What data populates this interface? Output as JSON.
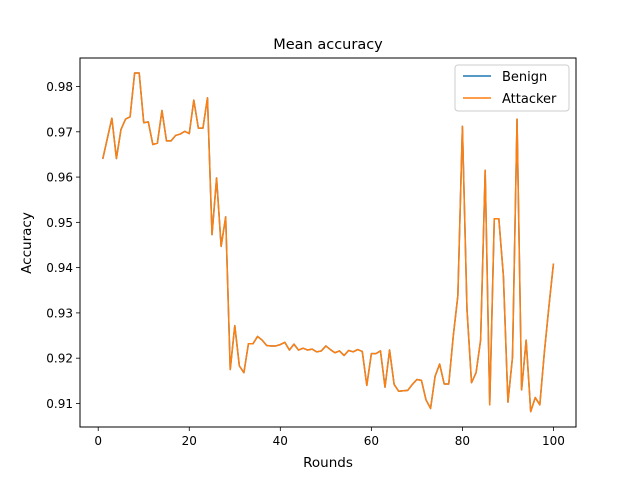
{
  "chart_data": {
    "type": "line",
    "title": "Mean accuracy",
    "xlabel": "Rounds",
    "ylabel": "Accuracy",
    "xlim": [
      -4,
      104.95
    ],
    "ylim": [
      0.9048,
      0.9863
    ],
    "xticks": [
      0,
      20,
      40,
      60,
      80,
      100
    ],
    "yticks": [
      0.91,
      0.92,
      0.93,
      0.94,
      0.95,
      0.96,
      0.97,
      0.98
    ],
    "xtick_labels": [
      "0",
      "20",
      "40",
      "60",
      "80",
      "100"
    ],
    "ytick_labels": [
      "0.91",
      "0.92",
      "0.93",
      "0.94",
      "0.95",
      "0.96",
      "0.97",
      "0.98"
    ],
    "grid": false,
    "legend_position": "top-right",
    "x": [
      1,
      2,
      3,
      4,
      5,
      6,
      7,
      8,
      9,
      10,
      11,
      12,
      13,
      14,
      15,
      16,
      17,
      18,
      19,
      20,
      21,
      22,
      23,
      24,
      25,
      26,
      27,
      28,
      29,
      30,
      31,
      32,
      33,
      34,
      35,
      36,
      37,
      38,
      39,
      40,
      41,
      42,
      43,
      44,
      45,
      46,
      47,
      48,
      49,
      50,
      51,
      52,
      53,
      54,
      55,
      56,
      57,
      58,
      59,
      60,
      61,
      62,
      63,
      64,
      65,
      66,
      67,
      68,
      69,
      70,
      71,
      72,
      73,
      74,
      75,
      76,
      77,
      78,
      79,
      80,
      81,
      82,
      83,
      84,
      85,
      86,
      87,
      88,
      89,
      90,
      91,
      92,
      93,
      94,
      95,
      96,
      97,
      98,
      99,
      100
    ],
    "series": [
      {
        "name": "Benign",
        "color": "#1f77b4",
        "values": [
          0.964,
          0.9685,
          0.973,
          0.9641,
          0.9705,
          0.9728,
          0.9733,
          0.983,
          0.983,
          0.972,
          0.9722,
          0.9672,
          0.9675,
          0.9747,
          0.968,
          0.968,
          0.9692,
          0.9695,
          0.9701,
          0.9696,
          0.977,
          0.9708,
          0.9708,
          0.9775,
          0.9473,
          0.9598,
          0.9447,
          0.9512,
          0.9175,
          0.9272,
          0.9183,
          0.9168,
          0.9232,
          0.9232,
          0.9248,
          0.924,
          0.9228,
          0.9227,
          0.9227,
          0.923,
          0.9235,
          0.9218,
          0.9231,
          0.9218,
          0.9222,
          0.9218,
          0.922,
          0.9214,
          0.9216,
          0.9227,
          0.9219,
          0.9212,
          0.9216,
          0.9206,
          0.9217,
          0.9214,
          0.9219,
          0.9215,
          0.914,
          0.921,
          0.921,
          0.9216,
          0.9136,
          0.9218,
          0.9142,
          0.9127,
          0.9128,
          0.9129,
          0.9142,
          0.9153,
          0.9151,
          0.9108,
          0.9089,
          0.916,
          0.9187,
          0.9143,
          0.9143,
          0.925,
          0.9338,
          0.9712,
          0.9308,
          0.9146,
          0.9168,
          0.924,
          0.9615,
          0.9097,
          0.9508,
          0.9508,
          0.9382,
          0.9103,
          0.9202,
          0.9728,
          0.913,
          0.924,
          0.9082,
          0.9113,
          0.9097,
          0.9213,
          0.9314,
          0.9409
        ]
      },
      {
        "name": "Attacker",
        "color": "#ff7f0e",
        "values": [
          0.964,
          0.9685,
          0.973,
          0.9641,
          0.9705,
          0.9728,
          0.9733,
          0.983,
          0.983,
          0.972,
          0.9722,
          0.9672,
          0.9675,
          0.9747,
          0.968,
          0.968,
          0.9692,
          0.9695,
          0.9701,
          0.9696,
          0.977,
          0.9708,
          0.9708,
          0.9775,
          0.9473,
          0.9598,
          0.9447,
          0.9512,
          0.9175,
          0.9272,
          0.9183,
          0.9168,
          0.9232,
          0.9232,
          0.9248,
          0.924,
          0.9228,
          0.9227,
          0.9227,
          0.923,
          0.9235,
          0.9218,
          0.9231,
          0.9218,
          0.9222,
          0.9218,
          0.922,
          0.9214,
          0.9216,
          0.9227,
          0.9219,
          0.9212,
          0.9216,
          0.9206,
          0.9217,
          0.9214,
          0.9219,
          0.9215,
          0.914,
          0.921,
          0.921,
          0.9216,
          0.9136,
          0.9218,
          0.9142,
          0.9127,
          0.9128,
          0.9129,
          0.9142,
          0.9153,
          0.9151,
          0.9108,
          0.9089,
          0.916,
          0.9187,
          0.9143,
          0.9143,
          0.925,
          0.9338,
          0.9712,
          0.9308,
          0.9146,
          0.9168,
          0.924,
          0.9615,
          0.9097,
          0.9508,
          0.9508,
          0.9382,
          0.9103,
          0.9202,
          0.9728,
          0.913,
          0.924,
          0.9082,
          0.9113,
          0.9097,
          0.9213,
          0.9314,
          0.9409
        ]
      }
    ]
  }
}
